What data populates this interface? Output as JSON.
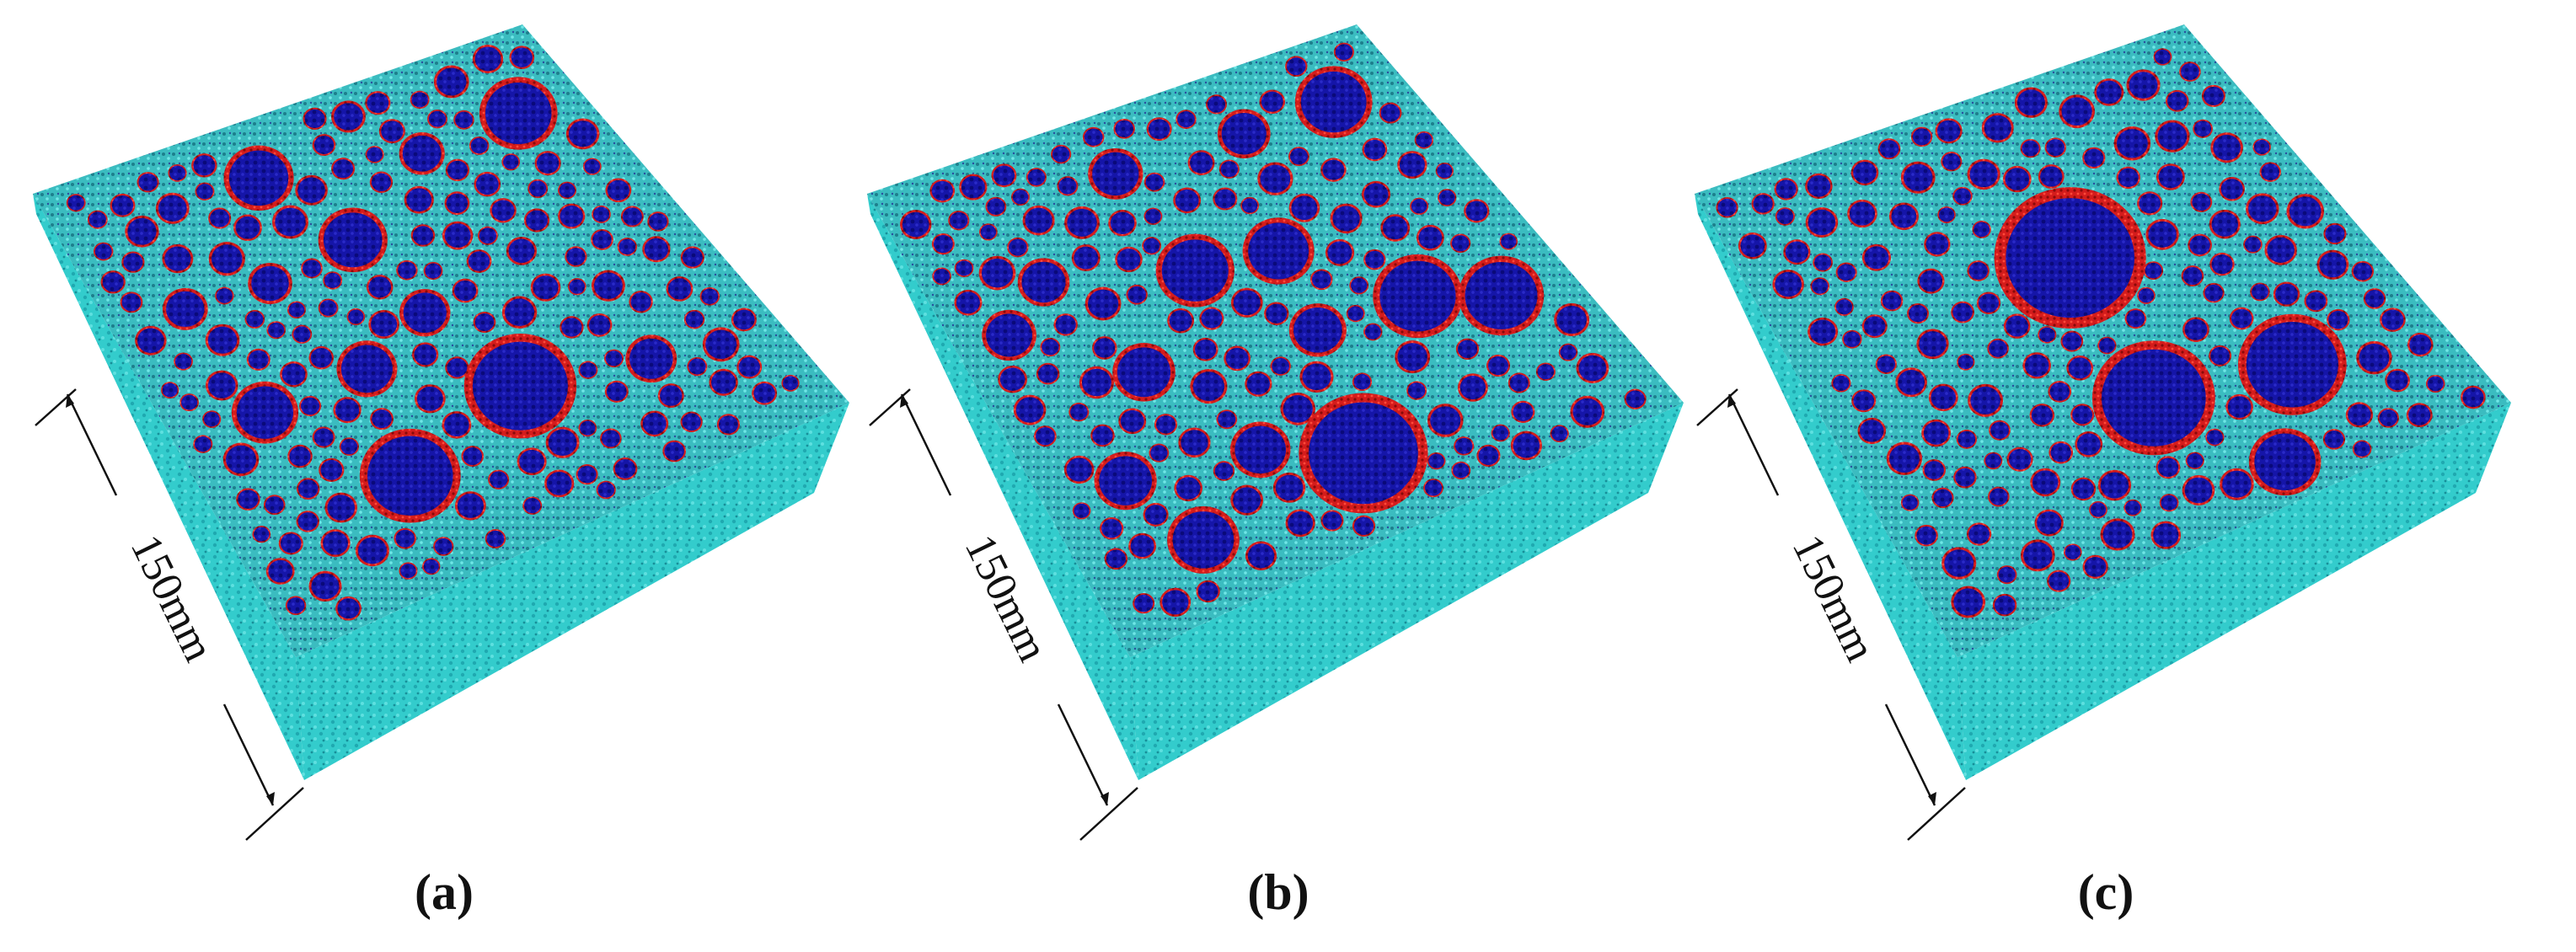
{
  "panels": [
    {
      "dimension": "150mm",
      "caption": "(a)"
    },
    {
      "dimension": "150mm",
      "caption": "(b)"
    },
    {
      "dimension": "150mm",
      "caption": "(c)"
    }
  ]
}
